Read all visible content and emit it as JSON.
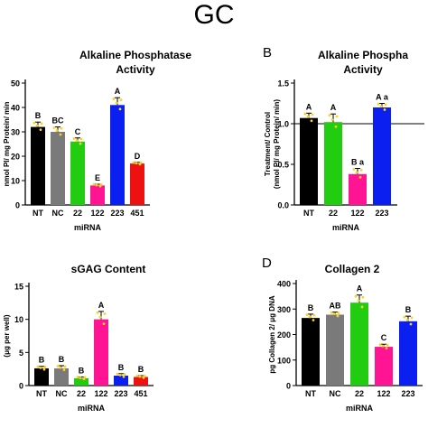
{
  "figure_title": "GC",
  "panel_labels": [
    "B",
    "D"
  ],
  "colors": {
    "NT": "#000000",
    "NC": "#7a7a7a",
    "22": "#22cc11",
    "122": "#ff1493",
    "223": "#0a1ff0",
    "451": "#ee1111",
    "points": "#ffd21a"
  },
  "chart_data": [
    {
      "type": "bar",
      "title": [
        "Alkaline Phosphatase",
        "Activity"
      ],
      "xlabel": "miRNA",
      "ylabel": [
        "nmol PI/ mg Protein/ min"
      ],
      "categories": [
        "NT",
        "NC",
        "22",
        "122",
        "223",
        "451"
      ],
      "values": [
        32,
        30,
        26,
        8,
        41,
        17
      ],
      "errors": [
        2,
        2,
        1.5,
        0.5,
        3,
        0.5
      ],
      "letters": [
        "B",
        "BC",
        "C",
        "E",
        "A",
        "D"
      ],
      "ylim": [
        0,
        50
      ],
      "yticks": [
        0,
        10,
        20,
        30,
        40,
        50
      ],
      "reference_line": null
    },
    {
      "type": "bar",
      "title": [
        "Alkaline Phospha",
        "Activity"
      ],
      "xlabel": "miRNA",
      "ylabel": [
        "Treatment/ Control",
        "(nmol PI/ mg Protein/ min)"
      ],
      "categories": [
        "NT",
        "22",
        "122",
        "223"
      ],
      "values": [
        1.07,
        1.02,
        0.38,
        1.2
      ],
      "errors": [
        0.06,
        0.1,
        0.07,
        0.05
      ],
      "letters": [
        "A",
        "A",
        "B a",
        "A a"
      ],
      "ylim": [
        0,
        1.5
      ],
      "yticks": [
        0.0,
        0.5,
        1.0,
        1.5
      ],
      "reference_line": 1.0
    },
    {
      "type": "bar",
      "title": [
        "sGAG Content"
      ],
      "xlabel": "miRNA",
      "ylabel": [
        "(μg per well)"
      ],
      "categories": [
        "NT",
        "NC",
        "22",
        "122",
        "223",
        "451"
      ],
      "values": [
        2.6,
        2.6,
        1.1,
        10.0,
        1.5,
        1.3
      ],
      "errors": [
        0.3,
        0.4,
        0.2,
        1.2,
        0.3,
        0.2
      ],
      "letters": [
        "B",
        "B",
        "B",
        "A",
        "B",
        "B"
      ],
      "ylim": [
        0,
        15
      ],
      "yticks": [
        0,
        5,
        10,
        15
      ],
      "reference_line": null
    },
    {
      "type": "bar",
      "title": [
        "Collagen 2"
      ],
      "xlabel": "miRNA",
      "ylabel": [
        "pg Collagen 2/ μg DNA"
      ],
      "categories": [
        "NT",
        "NC",
        "22",
        "122",
        "223"
      ],
      "values": [
        265,
        278,
        325,
        152,
        252
      ],
      "errors": [
        15,
        10,
        30,
        10,
        20
      ],
      "letters": [
        "B",
        "AB",
        "A",
        "C",
        "B"
      ],
      "ylim": [
        0,
        400
      ],
      "yticks": [
        0,
        100,
        200,
        300,
        400
      ],
      "reference_line": null
    }
  ]
}
